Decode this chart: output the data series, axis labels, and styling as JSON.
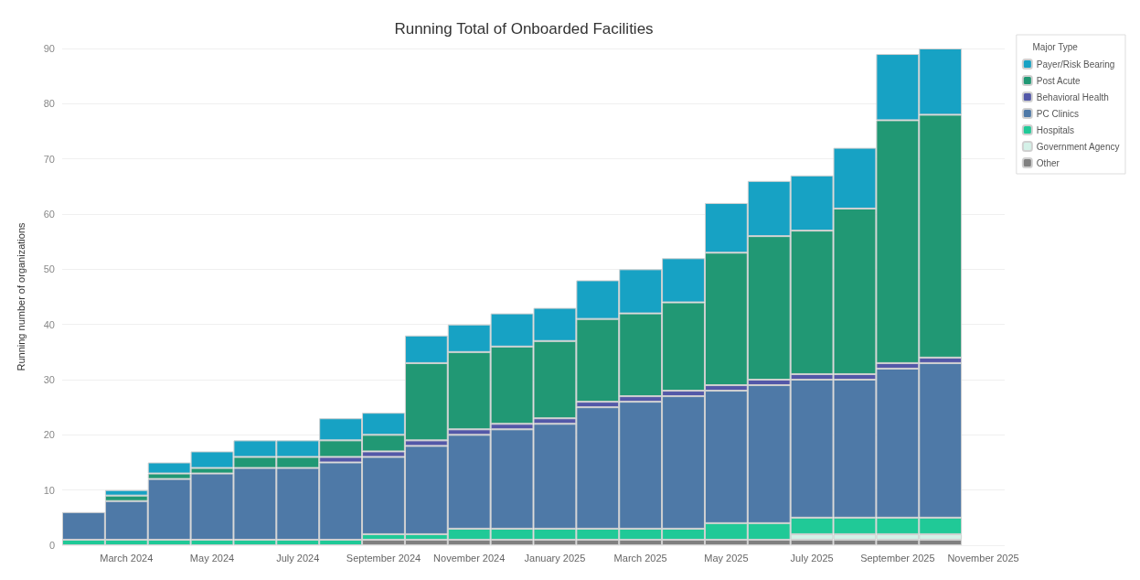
{
  "chart_data": {
    "type": "bar",
    "title": "Running Total of Onboarded Facilities",
    "ylabel": "Running number of organizations",
    "legend_title": "Major Type",
    "categories": [
      null,
      "March 2024",
      null,
      "May 2024",
      null,
      "July 2024",
      null,
      "September 2024",
      null,
      "November 2024",
      null,
      "January 2025",
      null,
      "March 2025",
      null,
      "May 2025",
      null,
      "July 2025",
      null,
      "September 2025",
      null,
      "November 2025"
    ],
    "stacked": true,
    "ylim": [
      0,
      90
    ],
    "yticks": [
      0,
      10,
      20,
      30,
      40,
      50,
      60,
      70,
      80,
      90
    ],
    "grid": "y",
    "legend": "top right",
    "series": [
      {
        "name": "Other",
        "color": "#808080",
        "values": [
          0,
          0,
          0,
          0,
          0,
          0,
          0,
          1,
          1,
          1,
          1,
          1,
          1,
          1,
          1,
          1,
          1,
          1,
          1,
          1,
          1,
          null
        ]
      },
      {
        "name": "Government Agency",
        "color": "#d4f1e8",
        "values": [
          0,
          0,
          0,
          0,
          0,
          0,
          0,
          0,
          0,
          0,
          0,
          0,
          0,
          0,
          0,
          0,
          0,
          1,
          1,
          1,
          1,
          null
        ]
      },
      {
        "name": "Hospitals",
        "color": "#20c997",
        "values": [
          1,
          1,
          1,
          1,
          1,
          1,
          1,
          1,
          1,
          2,
          2,
          2,
          2,
          2,
          2,
          3,
          3,
          3,
          3,
          3,
          3,
          null
        ]
      },
      {
        "name": "PC Clinics",
        "color": "#4e79a7",
        "values": [
          5,
          7,
          11,
          12,
          13,
          13,
          14,
          14,
          16,
          17,
          18,
          19,
          22,
          23,
          24,
          24,
          25,
          25,
          25,
          27,
          28,
          null
        ]
      },
      {
        "name": "Behavioral Health",
        "color": "#5358a8",
        "values": [
          0,
          0,
          0,
          0,
          0,
          0,
          1,
          1,
          1,
          1,
          1,
          1,
          1,
          1,
          1,
          1,
          1,
          1,
          1,
          1,
          1,
          null
        ]
      },
      {
        "name": "Post Acute",
        "color": "#219874",
        "values": [
          0,
          1,
          1,
          1,
          2,
          2,
          3,
          3,
          14,
          14,
          14,
          14,
          15,
          15,
          16,
          24,
          26,
          26,
          30,
          44,
          44,
          null
        ]
      },
      {
        "name": "Payer/Risk Bearing",
        "color": "#17a2c4",
        "values": [
          0,
          1,
          2,
          3,
          3,
          3,
          4,
          4,
          5,
          5,
          6,
          6,
          7,
          8,
          8,
          9,
          10,
          10,
          11,
          12,
          12,
          null
        ]
      }
    ]
  }
}
